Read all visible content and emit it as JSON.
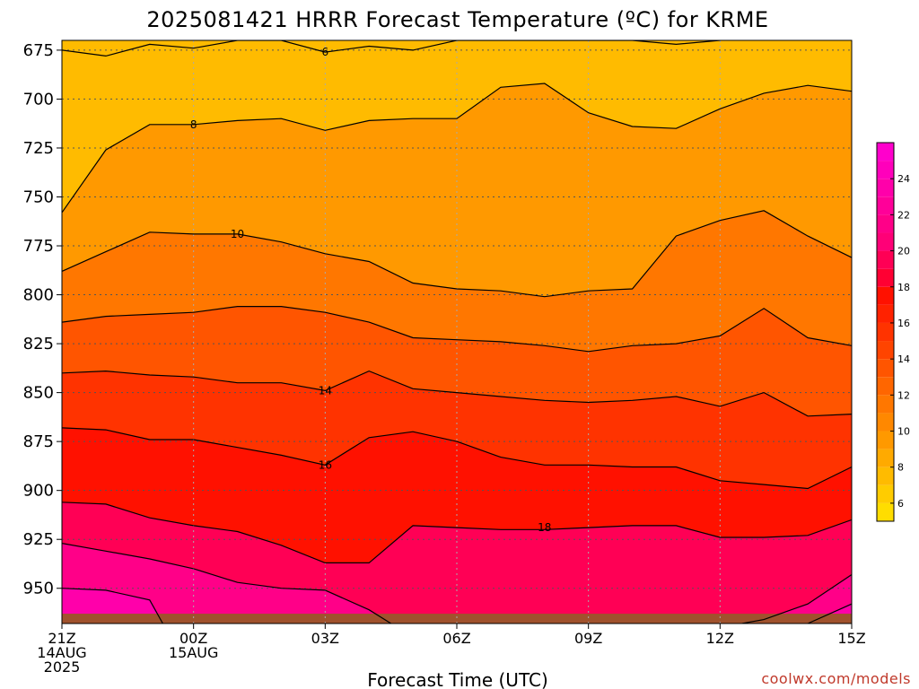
{
  "chart_data": {
    "type": "contour",
    "title": "2025081421 HRRR Forecast Temperature (ºC) for KRME",
    "xlabel": "Forecast Time (UTC)",
    "ylabel": "",
    "credit": "coolwx.com/models",
    "x_ticks": [
      {
        "hour": 0,
        "lines": [
          "21Z",
          "14AUG",
          "2025"
        ]
      },
      {
        "hour": 3,
        "lines": [
          "00Z",
          "15AUG"
        ]
      },
      {
        "hour": 6,
        "lines": [
          "03Z"
        ]
      },
      {
        "hour": 9,
        "lines": [
          "06Z"
        ]
      },
      {
        "hour": 12,
        "lines": [
          "09Z"
        ]
      },
      {
        "hour": 15,
        "lines": [
          "12Z"
        ]
      },
      {
        "hour": 18,
        "lines": [
          "15Z"
        ]
      }
    ],
    "xlim": [
      0,
      18
    ],
    "ylim": [
      968,
      670
    ],
    "y_ticks": [
      675,
      700,
      725,
      750,
      775,
      800,
      825,
      850,
      875,
      900,
      925,
      950
    ],
    "colorbar": {
      "ticks": [
        6,
        8,
        10,
        12,
        14,
        16,
        18,
        20,
        22,
        24
      ],
      "levels": [
        5,
        6,
        7,
        8,
        9,
        10,
        11,
        12,
        13,
        14,
        15,
        16,
        17,
        18,
        19,
        20,
        21,
        22,
        23,
        24,
        25,
        26
      ],
      "colors": [
        "#ffdd00",
        "#ffcc00",
        "#ffbb00",
        "#ffaa00",
        "#ff9900",
        "#ff8800",
        "#ff7700",
        "#ff6600",
        "#ff5500",
        "#ff4400",
        "#ff3300",
        "#ff2200",
        "#ff1100",
        "#ff0033",
        "#ff0055",
        "#ff0077",
        "#ff0088",
        "#ff0099",
        "#ff00aa",
        "#ff00bb",
        "#ff00cc"
      ]
    },
    "contours": [
      {
        "level": 6,
        "label": "6",
        "label_at": [
          6,
          676
        ],
        "points": [
          [
            0,
            675
          ],
          [
            1,
            678
          ],
          [
            2,
            672
          ],
          [
            3,
            674
          ],
          [
            4,
            670
          ],
          [
            5,
            670
          ],
          [
            6,
            676
          ],
          [
            7,
            673
          ],
          [
            8,
            675
          ],
          [
            9,
            670
          ],
          [
            10,
            670
          ],
          [
            13,
            670
          ],
          [
            14,
            672
          ],
          [
            15,
            670
          ]
        ]
      },
      {
        "level": 8,
        "label": "8",
        "label_at": [
          3,
          713
        ],
        "points": [
          [
            0,
            758
          ],
          [
            1,
            726
          ],
          [
            2,
            713
          ],
          [
            3,
            713
          ],
          [
            4,
            711
          ],
          [
            5,
            710
          ],
          [
            6,
            716
          ],
          [
            7,
            711
          ],
          [
            8,
            710
          ],
          [
            9,
            710
          ],
          [
            10,
            694
          ],
          [
            11,
            692
          ],
          [
            12,
            707
          ],
          [
            13,
            714
          ],
          [
            14,
            715
          ],
          [
            15,
            705
          ],
          [
            16,
            697
          ],
          [
            17,
            693
          ],
          [
            18,
            696
          ]
        ]
      },
      {
        "level": 10,
        "label": "10",
        "label_at": [
          4,
          769
        ],
        "points": [
          [
            0,
            788
          ],
          [
            1,
            778
          ],
          [
            2,
            768
          ],
          [
            3,
            769
          ],
          [
            4,
            769
          ],
          [
            5,
            773
          ],
          [
            6,
            779
          ],
          [
            7,
            783
          ],
          [
            8,
            794
          ],
          [
            9,
            797
          ],
          [
            10,
            798
          ],
          [
            11,
            801
          ],
          [
            12,
            798
          ],
          [
            13,
            797
          ],
          [
            14,
            770
          ],
          [
            15,
            762
          ],
          [
            16,
            757
          ],
          [
            17,
            770
          ],
          [
            18,
            781
          ]
        ]
      },
      {
        "level": 12,
        "label": "",
        "label_at": null,
        "points": [
          [
            0,
            814
          ],
          [
            1,
            811
          ],
          [
            2,
            810
          ],
          [
            3,
            809
          ],
          [
            4,
            806
          ],
          [
            5,
            806
          ],
          [
            6,
            809
          ],
          [
            7,
            814
          ],
          [
            8,
            822
          ],
          [
            9,
            823
          ],
          [
            10,
            824
          ],
          [
            11,
            826
          ],
          [
            12,
            829
          ],
          [
            13,
            826
          ],
          [
            14,
            825
          ],
          [
            15,
            821
          ],
          [
            16,
            807
          ],
          [
            17,
            822
          ],
          [
            18,
            826
          ]
        ]
      },
      {
        "level": 14,
        "label": "14",
        "label_at": [
          6,
          849
        ],
        "points": [
          [
            0,
            840
          ],
          [
            1,
            839
          ],
          [
            2,
            841
          ],
          [
            3,
            842
          ],
          [
            4,
            845
          ],
          [
            5,
            845
          ],
          [
            6,
            849
          ],
          [
            7,
            839
          ],
          [
            8,
            848
          ],
          [
            9,
            850
          ],
          [
            10,
            852
          ],
          [
            11,
            854
          ],
          [
            12,
            855
          ],
          [
            13,
            854
          ],
          [
            14,
            852
          ],
          [
            15,
            857
          ],
          [
            16,
            850
          ],
          [
            17,
            862
          ],
          [
            18,
            861
          ]
        ]
      },
      {
        "level": 16,
        "label": "16",
        "label_at": [
          6,
          887
        ],
        "points": [
          [
            0,
            868
          ],
          [
            1,
            869
          ],
          [
            2,
            874
          ],
          [
            3,
            874
          ],
          [
            4,
            878
          ],
          [
            5,
            882
          ],
          [
            6,
            887
          ],
          [
            7,
            873
          ],
          [
            8,
            870
          ],
          [
            9,
            875
          ],
          [
            10,
            883
          ],
          [
            11,
            887
          ],
          [
            12,
            887
          ],
          [
            13,
            888
          ],
          [
            14,
            888
          ],
          [
            15,
            895
          ],
          [
            16,
            897
          ],
          [
            17,
            899
          ],
          [
            18,
            888
          ]
        ]
      },
      {
        "level": 18,
        "label": "18",
        "label_at": [
          11,
          919
        ],
        "points": [
          [
            0,
            906
          ],
          [
            1,
            907
          ],
          [
            2,
            914
          ],
          [
            3,
            918
          ],
          [
            4,
            921
          ],
          [
            5,
            928
          ],
          [
            6,
            937
          ],
          [
            7,
            937
          ],
          [
            8,
            918
          ],
          [
            9,
            919
          ],
          [
            10,
            920
          ],
          [
            11,
            920
          ],
          [
            12,
            919
          ],
          [
            13,
            918
          ],
          [
            14,
            918
          ],
          [
            15,
            924
          ],
          [
            16,
            924
          ],
          [
            17,
            923
          ],
          [
            18,
            915
          ]
        ]
      },
      {
        "level": 20,
        "label": "",
        "label_at": null,
        "points": [
          [
            0,
            927
          ],
          [
            1,
            931
          ],
          [
            2,
            935
          ],
          [
            3,
            940
          ],
          [
            4,
            947
          ],
          [
            5,
            950
          ],
          [
            6,
            951
          ],
          [
            7,
            961
          ],
          [
            7.5,
            968
          ]
        ]
      },
      {
        "level": 20,
        "label": "",
        "label_at": null,
        "points": [
          [
            15.5,
            968
          ],
          [
            16,
            966
          ],
          [
            17,
            958
          ],
          [
            18,
            943
          ]
        ]
      },
      {
        "level": 22,
        "label": "",
        "label_at": null,
        "points": [
          [
            0,
            950
          ],
          [
            1,
            951
          ],
          [
            2,
            956
          ],
          [
            2.3,
            968
          ]
        ]
      },
      {
        "level": 22,
        "label": "",
        "label_at": null,
        "points": [
          [
            17,
            968
          ],
          [
            18,
            958
          ]
        ]
      }
    ],
    "terrain": {
      "color": "#a0522d",
      "pressure_start": 963
    }
  }
}
